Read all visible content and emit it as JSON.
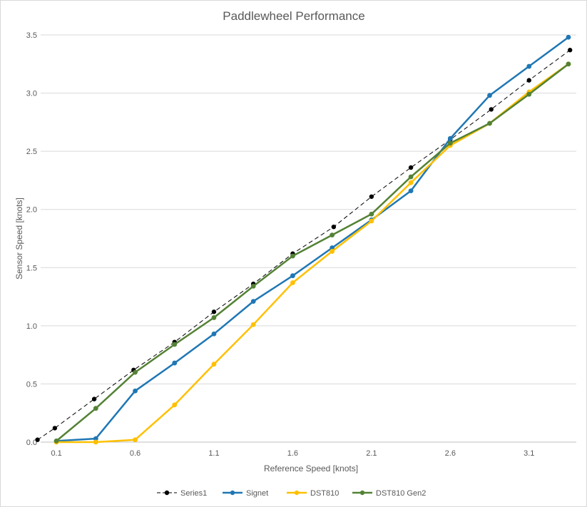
{
  "chart_data": {
    "type": "line",
    "title": "Paddlewheel Performance",
    "xlabel": "Reference Speed [knots]",
    "ylabel": "Sensor Speed [knots]",
    "xlim": [
      0,
      3.4
    ],
    "ylim": [
      0,
      3.5
    ],
    "x_ticks": [
      "0.1",
      "0.6",
      "1.1",
      "1.6",
      "2.1",
      "2.6",
      "3.1"
    ],
    "y_ticks": [
      "0.0",
      "0.5",
      "1.0",
      "1.5",
      "2.0",
      "2.5",
      "3.0",
      "3.5"
    ],
    "grid": true,
    "legend_position": "bottom",
    "series": [
      {
        "name": "Series1",
        "color": "#000000",
        "dashed": true,
        "points": [
          [
            -0.02,
            0.02
          ],
          [
            0.09,
            0.12
          ],
          [
            0.34,
            0.37
          ],
          [
            0.59,
            0.62
          ],
          [
            0.85,
            0.86
          ],
          [
            1.1,
            1.12
          ],
          [
            1.35,
            1.36
          ],
          [
            1.6,
            1.62
          ],
          [
            1.86,
            1.85
          ],
          [
            2.1,
            2.11
          ],
          [
            2.35,
            2.36
          ],
          [
            2.6,
            2.6
          ],
          [
            2.86,
            2.86
          ],
          [
            3.1,
            3.11
          ],
          [
            3.36,
            3.37
          ]
        ]
      },
      {
        "name": "Signet",
        "color": "#1f77b4",
        "dashed": false,
        "points": [
          [
            0.1,
            0.01
          ],
          [
            0.35,
            0.03
          ],
          [
            0.6,
            0.44
          ],
          [
            0.85,
            0.68
          ],
          [
            1.1,
            0.93
          ],
          [
            1.35,
            1.21
          ],
          [
            1.6,
            1.43
          ],
          [
            1.85,
            1.67
          ],
          [
            2.1,
            1.91
          ],
          [
            2.35,
            2.16
          ],
          [
            2.6,
            2.61
          ],
          [
            2.85,
            2.98
          ],
          [
            3.1,
            3.23
          ],
          [
            3.35,
            3.48
          ]
        ]
      },
      {
        "name": "DST810",
        "color": "#ffc000",
        "dashed": false,
        "points": [
          [
            0.1,
            0.0
          ],
          [
            0.35,
            0.0
          ],
          [
            0.6,
            0.02
          ],
          [
            0.85,
            0.32
          ],
          [
            1.1,
            0.67
          ],
          [
            1.35,
            1.01
          ],
          [
            1.6,
            1.37
          ],
          [
            1.85,
            1.64
          ],
          [
            2.1,
            1.9
          ],
          [
            2.35,
            2.23
          ],
          [
            2.6,
            2.55
          ],
          [
            2.85,
            2.74
          ],
          [
            3.1,
            3.01
          ],
          [
            3.35,
            3.25
          ]
        ]
      },
      {
        "name": "DST810 Gen2",
        "color": "#548235",
        "dashed": false,
        "points": [
          [
            0.1,
            0.01
          ],
          [
            0.35,
            0.29
          ],
          [
            0.6,
            0.6
          ],
          [
            0.85,
            0.84
          ],
          [
            1.1,
            1.07
          ],
          [
            1.35,
            1.34
          ],
          [
            1.6,
            1.6
          ],
          [
            1.85,
            1.78
          ],
          [
            2.1,
            1.96
          ],
          [
            2.35,
            2.28
          ],
          [
            2.6,
            2.57
          ],
          [
            2.85,
            2.74
          ],
          [
            3.1,
            2.99
          ],
          [
            3.35,
            3.25
          ]
        ]
      }
    ]
  }
}
